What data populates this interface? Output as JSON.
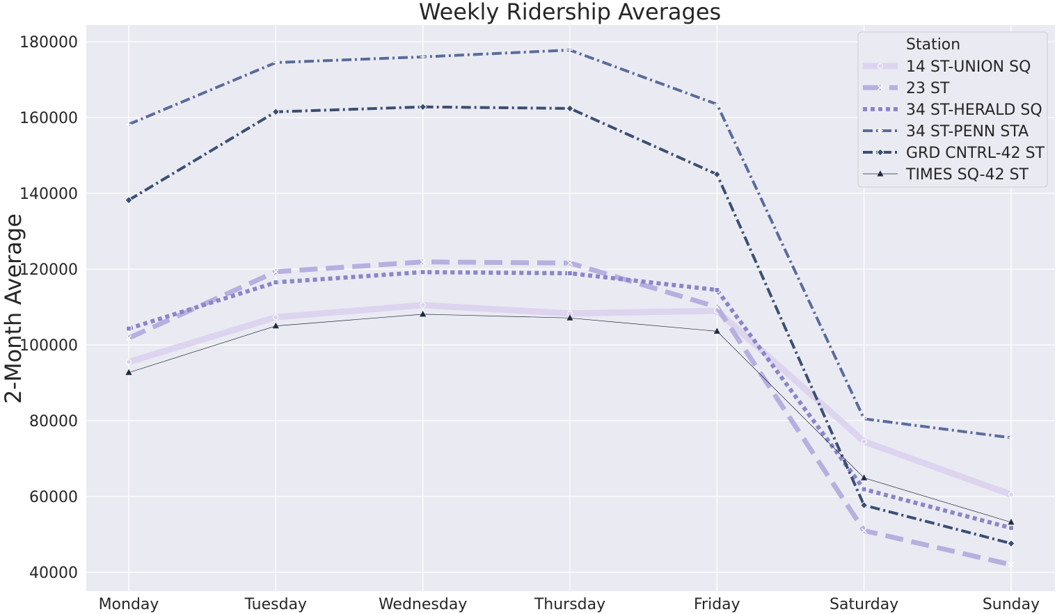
{
  "chart_data": {
    "type": "line",
    "title": "Weekly Ridership Averages",
    "xlabel": "",
    "ylabel": "2-Month Average",
    "categories": [
      "Monday",
      "Tuesday",
      "Wednesday",
      "Thursday",
      "Friday",
      "Saturday",
      "Sunday"
    ],
    "yticks": [
      40000,
      60000,
      80000,
      100000,
      120000,
      140000,
      160000,
      180000
    ],
    "ytick_labels": [
      "40000",
      "60000",
      "80000",
      "100000",
      "120000",
      "140000",
      "160000",
      "180000"
    ],
    "ylim": [
      35500,
      184500
    ],
    "grid": true,
    "background": "#eaeaf2",
    "legend": {
      "title": "Station",
      "placement": "top-right"
    },
    "series": [
      {
        "name": "14 ST-UNION SQ",
        "values": [
          95500,
          107300,
          110500,
          108300,
          109000,
          74500,
          60500
        ],
        "color": "#ddd4ef",
        "stroke_style": "solid",
        "marker": "circle"
      },
      {
        "name": "23 ST",
        "values": [
          101800,
          119300,
          121900,
          121600,
          110000,
          51000,
          42000
        ],
        "color": "#b6afdf",
        "stroke_style": "dashed",
        "marker": "x"
      },
      {
        "name": "34 ST-HERALD SQ",
        "values": [
          104300,
          116500,
          119200,
          118900,
          114500,
          61900,
          51700
        ],
        "color": "#8a86c9",
        "stroke_style": "dotted",
        "marker": "square"
      },
      {
        "name": "34 ST-PENN STA",
        "values": [
          158200,
          174500,
          176000,
          177800,
          163500,
          80500,
          75500
        ],
        "color": "#5a6b9d",
        "stroke_style": "dashdot",
        "marker": "plus"
      },
      {
        "name": "GRD CNTRL-42 ST",
        "values": [
          138200,
          161500,
          162800,
          162400,
          145000,
          57700,
          47600
        ],
        "color": "#3a4f72",
        "stroke_style": "dashdot",
        "marker": "diamond"
      },
      {
        "name": "TIMES SQ-42 ST",
        "values": [
          92700,
          105000,
          108100,
          107100,
          103600,
          64900,
          53200
        ],
        "color": "#1f2a3e",
        "stroke_style": "thin",
        "marker": "triangle"
      }
    ]
  }
}
